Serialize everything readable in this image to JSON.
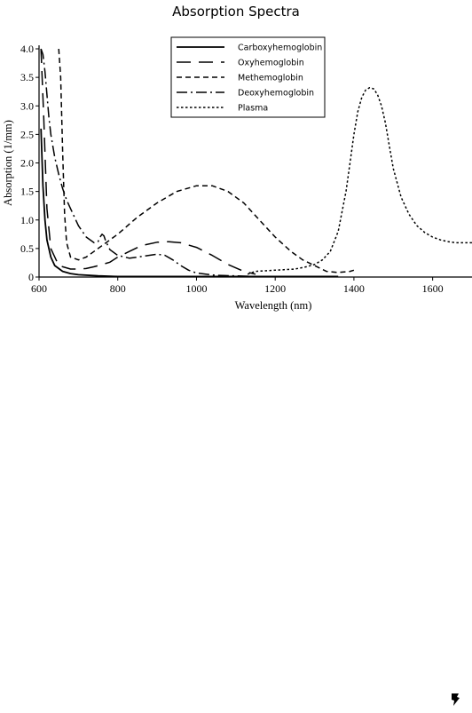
{
  "chart_data": {
    "type": "line",
    "title": "Absorption Spectra",
    "xlabel": "Wavelength (nm)",
    "ylabel": "Absorption (1/mm)",
    "xlim": [
      600,
      1700
    ],
    "ylim": [
      0,
      4.0
    ],
    "xticks": [
      600,
      800,
      1000,
      1200,
      1400,
      1600
    ],
    "yticks": [
      0,
      0.5,
      1.0,
      1.5,
      2.0,
      2.5,
      3.0,
      3.5,
      4.0
    ],
    "xtick_labels": [
      "600",
      "800",
      "1000",
      "1200",
      "1400",
      "1600"
    ],
    "ytick_labels": [
      "0",
      "0.5",
      "1.0",
      "1.5",
      "2.0",
      "2.5",
      "3.0",
      "3.5",
      "4.0"
    ],
    "grid": false,
    "legend_position": "top-center",
    "series": [
      {
        "name": "Carboxyhemoglobin",
        "style": "solid",
        "x": [
          605,
          610,
          615,
          620,
          630,
          640,
          660,
          680,
          700,
          750,
          800,
          900,
          1000,
          1100,
          1200,
          1300,
          1360
        ],
        "y": [
          2.6,
          1.6,
          1.0,
          0.65,
          0.35,
          0.2,
          0.1,
          0.06,
          0.04,
          0.02,
          0.01,
          0.01,
          0.01,
          0.01,
          0.01,
          0.01,
          0.01
        ]
      },
      {
        "name": "Oxyhemoglobin",
        "style": "long-dash",
        "x": [
          605,
          612,
          620,
          630,
          650,
          680,
          700,
          720,
          740,
          760,
          780,
          800,
          830,
          860,
          900,
          930,
          960,
          1000,
          1040,
          1080,
          1120,
          1150
        ],
        "y": [
          4.0,
          2.8,
          1.2,
          0.5,
          0.2,
          0.14,
          0.14,
          0.15,
          0.18,
          0.22,
          0.26,
          0.35,
          0.45,
          0.55,
          0.61,
          0.62,
          0.6,
          0.52,
          0.38,
          0.22,
          0.1,
          0.05
        ]
      },
      {
        "name": "Methemoglobin",
        "style": "short-dash",
        "x": [
          650,
          655,
          660,
          665,
          670,
          680,
          700,
          720,
          750,
          800,
          850,
          900,
          950,
          1000,
          1040,
          1080,
          1120,
          1160,
          1200,
          1240,
          1270,
          1300,
          1330,
          1360,
          1390,
          1400
        ],
        "y": [
          4.0,
          3.5,
          2.2,
          1.1,
          0.6,
          0.35,
          0.3,
          0.35,
          0.5,
          0.75,
          1.05,
          1.3,
          1.5,
          1.6,
          1.6,
          1.5,
          1.3,
          1.0,
          0.7,
          0.45,
          0.3,
          0.2,
          0.1,
          0.08,
          0.1,
          0.12
        ]
      },
      {
        "name": "Deoxyhemoglobin",
        "style": "dash-dot",
        "x": [
          605,
          610,
          615,
          620,
          625,
          630,
          640,
          650,
          660,
          670,
          680,
          690,
          700,
          720,
          740,
          750,
          755,
          760,
          765,
          770,
          780,
          800,
          830,
          860,
          900,
          920,
          940,
          960,
          980,
          1000,
          1050,
          1100,
          1150
        ],
        "y": [
          4.0,
          3.9,
          3.6,
          3.2,
          2.8,
          2.5,
          2.1,
          1.8,
          1.55,
          1.35,
          1.2,
          1.05,
          0.9,
          0.7,
          0.6,
          0.62,
          0.7,
          0.75,
          0.72,
          0.62,
          0.48,
          0.38,
          0.33,
          0.36,
          0.4,
          0.38,
          0.3,
          0.2,
          0.12,
          0.07,
          0.03,
          0.02,
          0.01
        ]
      },
      {
        "name": "Plasma",
        "style": "dotted",
        "x": [
          1130,
          1150,
          1200,
          1250,
          1280,
          1300,
          1320,
          1340,
          1360,
          1380,
          1390,
          1400,
          1410,
          1420,
          1430,
          1440,
          1450,
          1460,
          1470,
          1480,
          1490,
          1500,
          1520,
          1540,
          1560,
          1580,
          1600,
          1620,
          1640,
          1660,
          1680,
          1700
        ],
        "y": [
          0.05,
          0.1,
          0.12,
          0.14,
          0.18,
          0.22,
          0.3,
          0.45,
          0.8,
          1.5,
          2.0,
          2.5,
          2.9,
          3.15,
          3.28,
          3.32,
          3.3,
          3.2,
          3.0,
          2.7,
          2.3,
          1.9,
          1.4,
          1.1,
          0.9,
          0.78,
          0.7,
          0.65,
          0.62,
          0.6,
          0.6,
          0.6
        ]
      }
    ]
  },
  "branding": {
    "logo_icon": "brand-logo-icon"
  }
}
